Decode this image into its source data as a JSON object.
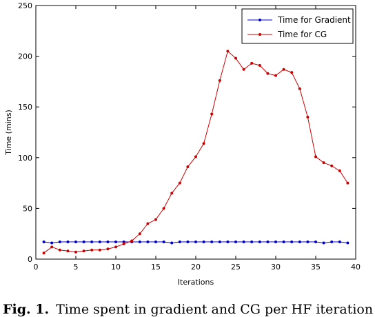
{
  "caption": {
    "label": "Fig. 1.",
    "text": "Time spent in gradient and CG per HF iteration"
  },
  "chart_data": {
    "type": "line",
    "title": "",
    "xlabel": "Iterations",
    "ylabel": "Time (mins)",
    "xlim": [
      0,
      40
    ],
    "ylim": [
      0,
      250
    ],
    "xticks": [
      0,
      5,
      10,
      15,
      20,
      25,
      30,
      35,
      40
    ],
    "yticks": [
      0,
      50,
      100,
      150,
      200,
      250
    ],
    "grid": false,
    "legend_position": "top-right",
    "x": [
      1,
      2,
      3,
      4,
      5,
      6,
      7,
      8,
      9,
      10,
      11,
      12,
      13,
      14,
      15,
      16,
      17,
      18,
      19,
      20,
      21,
      22,
      23,
      24,
      25,
      26,
      27,
      28,
      29,
      30,
      31,
      32,
      33,
      34,
      35,
      36,
      37,
      38,
      39
    ],
    "series": [
      {
        "name": "Time for Gradient",
        "color": "#0000cc",
        "values": [
          17,
          16,
          17,
          17,
          17,
          17,
          17,
          17,
          17,
          17,
          17,
          17,
          17,
          17,
          17,
          17,
          16,
          17,
          17,
          17,
          17,
          17,
          17,
          17,
          17,
          17,
          17,
          17,
          17,
          17,
          17,
          17,
          17,
          17,
          17,
          16,
          17,
          17,
          16
        ]
      },
      {
        "name": "Time for CG",
        "color": "#cc0000",
        "values": [
          6,
          12,
          9,
          8,
          7,
          8,
          9,
          9,
          10,
          12,
          15,
          18,
          25,
          35,
          39,
          50,
          65,
          75,
          91,
          101,
          114,
          143,
          176,
          205,
          198,
          187,
          193,
          191,
          183,
          181,
          187,
          184,
          168,
          140,
          101,
          95,
          92,
          87,
          75
        ]
      }
    ]
  }
}
